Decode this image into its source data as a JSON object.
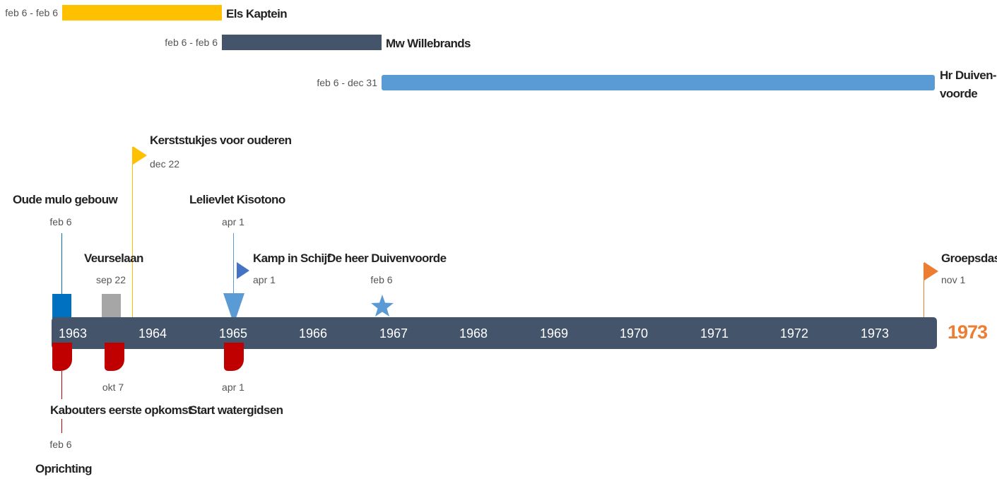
{
  "colors": {
    "timeline": "#44546A",
    "yellow": "#FFC000",
    "dark": "#44546A",
    "light_blue": "#5B9BD5",
    "orange": "#ED7D31",
    "red": "#C00000",
    "blue": "#0070C0",
    "gray": "#A6A6A6",
    "royal_blue": "#4472C4"
  },
  "bars": [
    {
      "date": "feb 6 - feb 6",
      "label": "Els Kaptein"
    },
    {
      "date": "feb 6 - feb 6",
      "label": "Mw Willebrands"
    },
    {
      "date": "feb 6 - dec 31",
      "label_line1": "Hr Duiven-",
      "label_line2": "voorde"
    }
  ],
  "milestones_above": [
    {
      "label": "Kerststukjes voor ouderen",
      "date": "dec 22",
      "icon": "flag-icon"
    },
    {
      "label": "Oude mulo gebouw",
      "date": "feb 6",
      "icon": "square-icon"
    },
    {
      "label": "Lelievlet Kisotono",
      "date": "apr 1",
      "icon": "down-triangle-icon"
    },
    {
      "label": "Veurselaan",
      "date": "sep 22",
      "icon": "square-icon"
    },
    {
      "label": "Kamp in Schijf",
      "date": "apr 1",
      "icon": "right-triangle-icon"
    },
    {
      "label": "De heer Duivenvoorde",
      "date": "feb 6",
      "icon": "star-icon"
    },
    {
      "label": "Groepsdas",
      "date": "nov 1",
      "icon": "flag-icon"
    }
  ],
  "milestones_below": [
    {
      "label": "Kabouters eerste opkomst",
      "date": "okt 7",
      "icon": "drop-icon"
    },
    {
      "label": "Start watergidsen",
      "date": "apr 1",
      "icon": "drop-icon"
    },
    {
      "label": "Oprichting",
      "date": "feb 6",
      "icon": "drop-icon"
    }
  ],
  "timeline": {
    "years": [
      "1963",
      "1964",
      "1965",
      "1966",
      "1967",
      "1968",
      "1969",
      "1970",
      "1971",
      "1972",
      "1973"
    ],
    "end_year": "1973"
  }
}
